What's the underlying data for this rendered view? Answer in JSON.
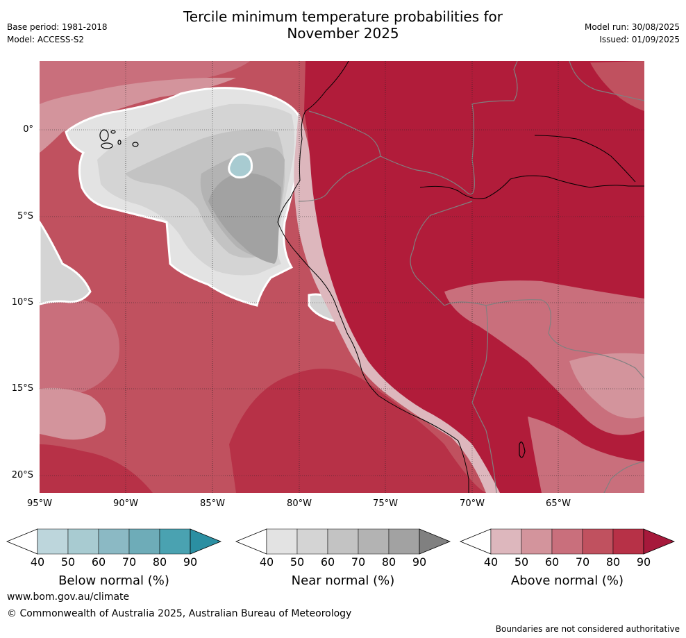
{
  "title": {
    "line1": "Tercile minimum temperature probabilities for",
    "line2": "November 2025"
  },
  "meta_left": {
    "base_period": "Base period: 1981-2018",
    "model": "Model: ACCESS-S2"
  },
  "meta_right": {
    "model_run": "Model run: 30/08/2025",
    "issued": "Issued: 01/09/2025"
  },
  "map": {
    "lat_ticks": [
      "0°",
      "5°S",
      "10°S",
      "15°S",
      "20°S"
    ],
    "lon_ticks": [
      "95°W",
      "90°W",
      "85°W",
      "80°W",
      "75°W",
      "70°W",
      "65°W"
    ]
  },
  "colorbars": [
    {
      "label": "Below normal (%)",
      "ticks": [
        "40",
        "50",
        "60",
        "70",
        "80",
        "90"
      ],
      "colors": [
        "#ffffff",
        "#bdd6dc",
        "#a8cbd1",
        "#8bb9c4",
        "#6eacb8",
        "#4aa2b1",
        "#2b8fa2"
      ]
    },
    {
      "label": "Near normal (%)",
      "ticks": [
        "40",
        "50",
        "60",
        "70",
        "80",
        "90"
      ],
      "colors": [
        "#ffffff",
        "#e3e3e3",
        "#d4d4d4",
        "#c3c3c3",
        "#b3b3b3",
        "#a2a2a2",
        "#808080"
      ]
    },
    {
      "label": "Above normal (%)",
      "ticks": [
        "40",
        "50",
        "60",
        "70",
        "80",
        "90"
      ],
      "colors": [
        "#ffffff",
        "#ddb7bd",
        "#d3949c",
        "#c96f7c",
        "#c0515f",
        "#b73147",
        "#a6193b"
      ]
    }
  ],
  "footer": {
    "website": "www.bom.gov.au/climate",
    "copyright": "© Commonwealth of Australia 2025, Australian Bureau of Meteorology",
    "disclaimer": "Boundaries are not considered authoritative"
  }
}
